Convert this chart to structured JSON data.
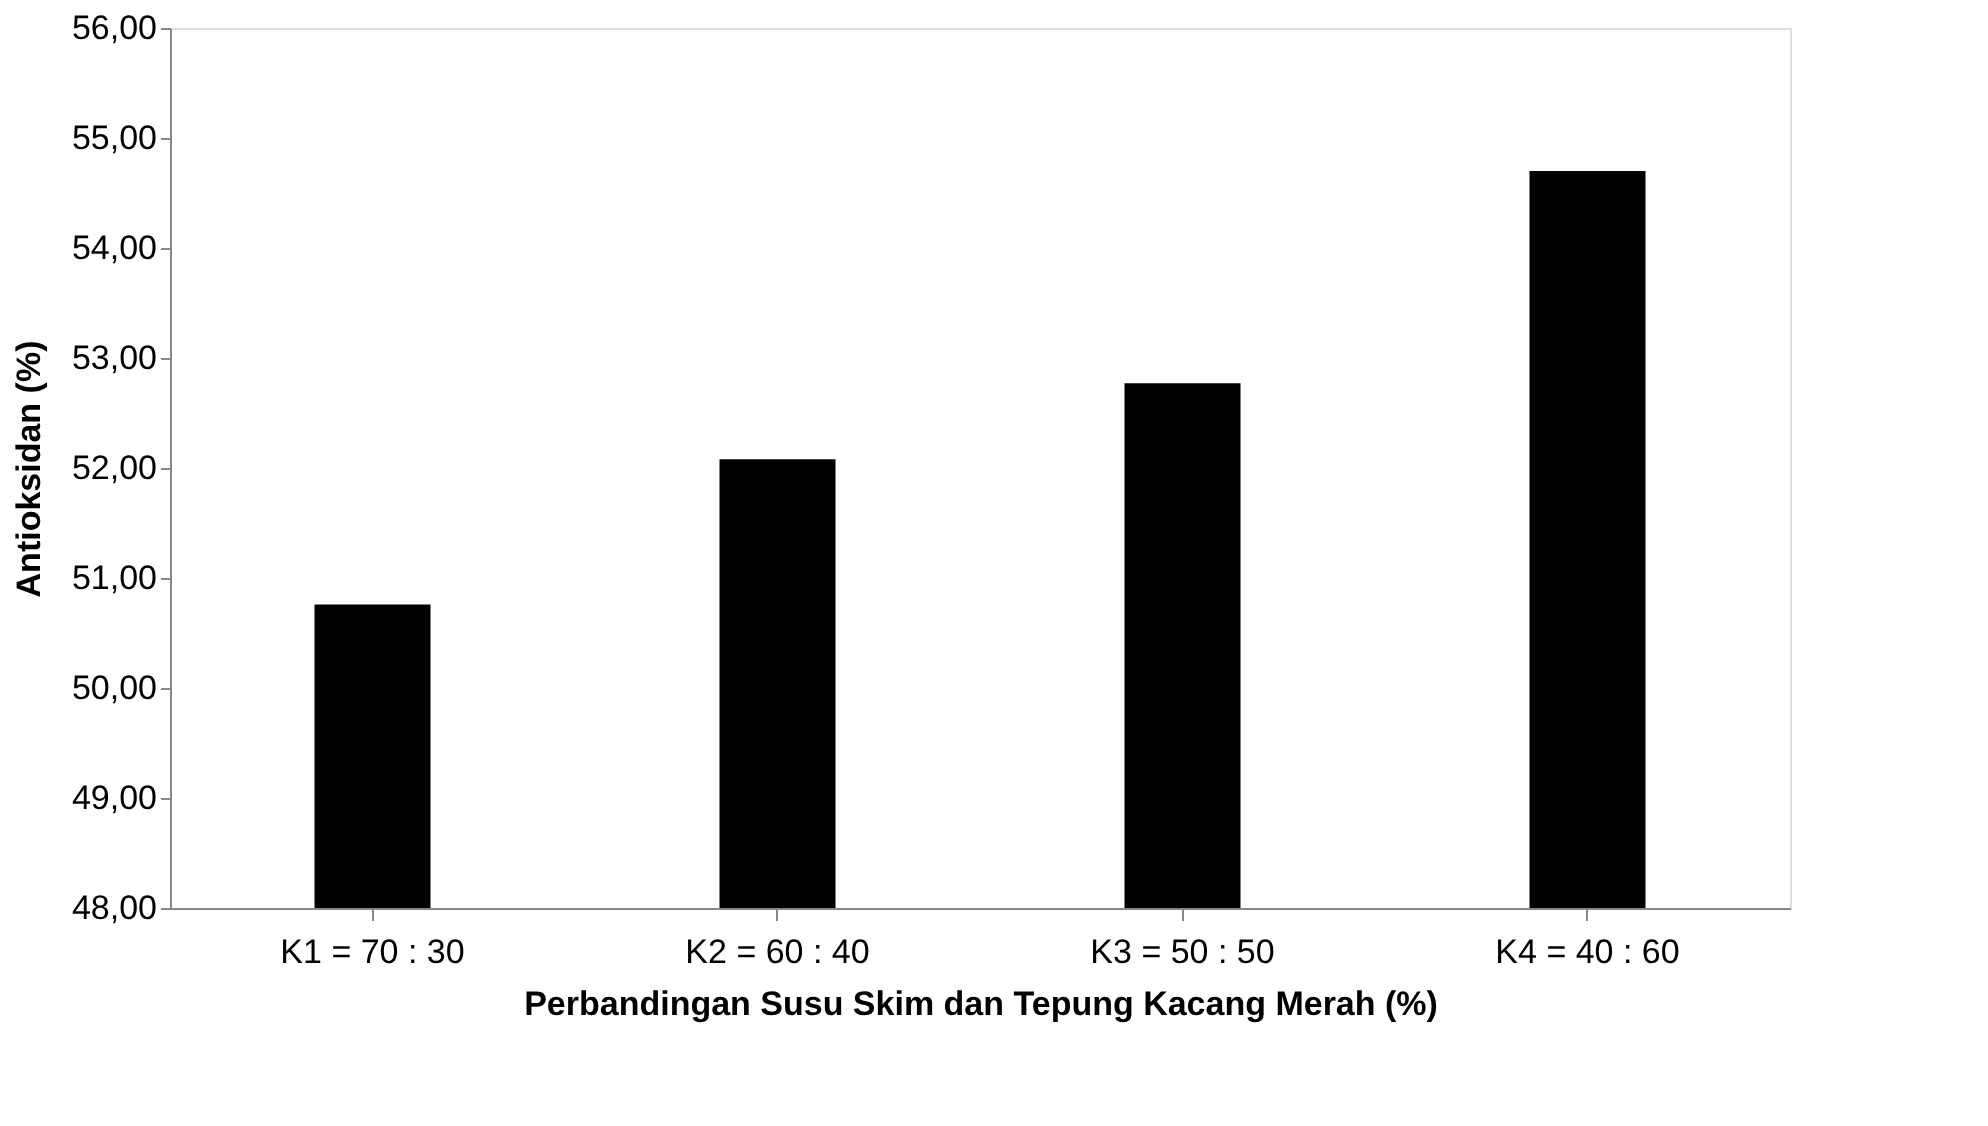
{
  "chart_data": {
    "type": "bar",
    "xlabel": "Perbandingan Susu Skim dan Tepung Kacang Merah (%)",
    "ylabel": "Antioksidan (%)",
    "categories": [
      "K1 = 70 : 30",
      "K2 = 60 : 40",
      "K3 = 50 : 50",
      "K4 = 40 : 60"
    ],
    "values": [
      50.76,
      52.08,
      52.77,
      54.7
    ],
    "color": "#000000",
    "ylim": [
      48,
      56
    ],
    "yticks": [
      {
        "value": 48,
        "label": "48,00"
      },
      {
        "value": 49,
        "label": "49,00"
      },
      {
        "value": 50,
        "label": "50,00"
      },
      {
        "value": 51,
        "label": "51,00"
      },
      {
        "value": 52,
        "label": "52,00"
      },
      {
        "value": 53,
        "label": "53,00"
      },
      {
        "value": 54,
        "label": "54,00"
      },
      {
        "value": 55,
        "label": "55,00"
      },
      {
        "value": 56,
        "label": "56,00"
      }
    ],
    "grid": false
  }
}
